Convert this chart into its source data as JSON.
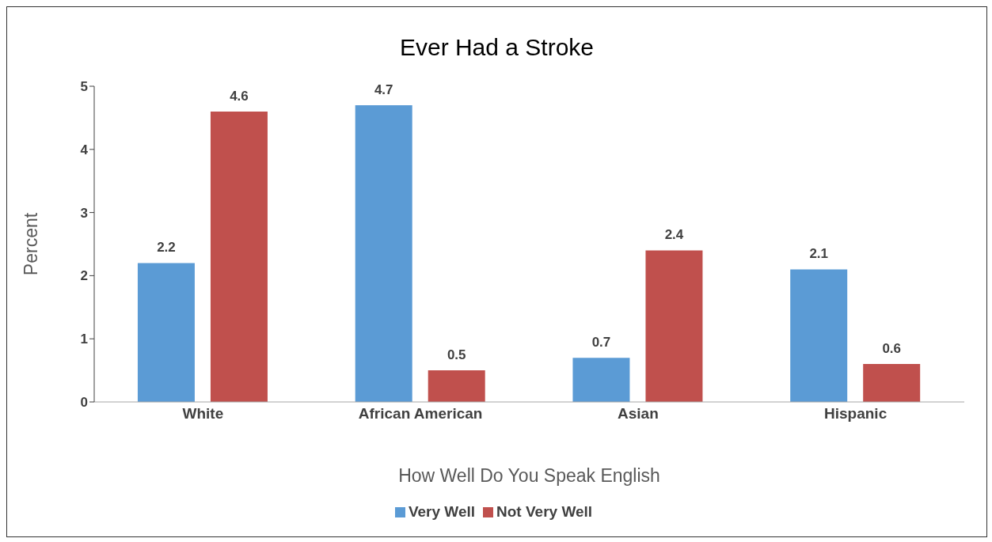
{
  "chart_data": {
    "type": "bar",
    "title": "Ever Had a Stroke",
    "xlabel": "How Well Do You Speak English",
    "ylabel": "Percent",
    "categories": [
      "White",
      "African American",
      "Asian",
      "Hispanic"
    ],
    "series": [
      {
        "name": "Very Well",
        "color": "#5b9bd5",
        "values": [
          2.2,
          4.7,
          0.7,
          2.1
        ]
      },
      {
        "name": "Not Very Well",
        "color": "#c0504d",
        "values": [
          4.6,
          0.5,
          2.4,
          0.6
        ]
      }
    ],
    "ylim": [
      0,
      5
    ],
    "yticks": [
      0,
      1,
      2,
      3,
      4,
      5
    ],
    "data_labels": true,
    "legend": "bottom"
  }
}
